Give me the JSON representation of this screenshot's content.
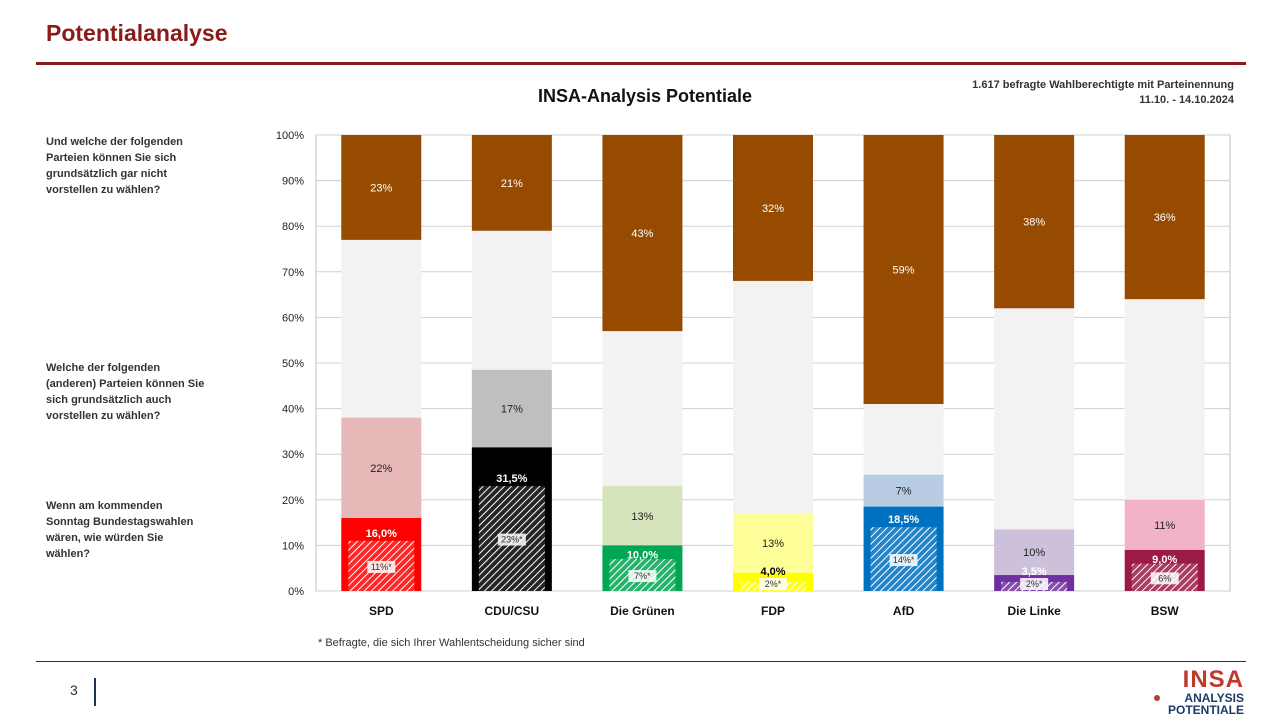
{
  "page": {
    "title": "Potentialanalyse",
    "meta_line1": "1.617 befragte Wahlberechtigte mit Parteinennung",
    "meta_line2": "11.10. - 14.10.2024",
    "questions": [
      "Und welche der folgenden Parteien können Sie sich grundsätzlich gar nicht vorstellen zu wählen?",
      "Welche der folgenden (anderen) Parteien können Sie sich grundsätzlich auch vorstellen zu wählen?",
      "Wenn am kommenden Sonntag Bundestagswahlen wären, wie würden Sie wählen?"
    ],
    "footnote": "* Befragte, die sich Ihrer Wahlentscheidung sicher sind",
    "page_number": "3",
    "logo_main": "INSA",
    "logo_sub1": "ANALYSIS",
    "logo_sub2": "POTENTIALE"
  },
  "chart_data": {
    "type": "bar",
    "stacked": true,
    "title": "INSA-Analysis Potentiale",
    "ylim": [
      0,
      100
    ],
    "yticks": [
      "0%",
      "10%",
      "20%",
      "30%",
      "40%",
      "50%",
      "60%",
      "70%",
      "80%",
      "90%",
      "100%"
    ],
    "grid": true,
    "categories": [
      "SPD",
      "CDU/CSU",
      "Die Grünen",
      "FDP",
      "AfD",
      "Die Linke",
      "BSW"
    ],
    "vote": [
      16.0,
      31.5,
      10.0,
      4.0,
      18.5,
      3.5,
      9.0
    ],
    "vote_labels": [
      "16,0%",
      "31,5%",
      "10,0%",
      "4,0%",
      "18,5%",
      "3,5%",
      "9,0%"
    ],
    "certain": [
      11,
      23,
      7,
      2,
      14,
      2,
      6
    ],
    "certain_labels": [
      "11%*",
      "23%*",
      "7%*",
      "2%*",
      "14%*",
      "2%*",
      "6%"
    ],
    "potential": [
      22,
      17,
      13,
      13,
      7,
      10,
      11
    ],
    "potential_labels": [
      "22%",
      "17%",
      "13%",
      "13%",
      "7%",
      "10%",
      "11%"
    ],
    "rejection": [
      23,
      21,
      43,
      32,
      59,
      38,
      36
    ],
    "rejection_labels": [
      "23%",
      "21%",
      "43%",
      "32%",
      "59%",
      "38%",
      "36%"
    ],
    "colors": {
      "vote": [
        "#ff0000",
        "#000000",
        "#00a651",
        "#ffff00",
        "#0070c0",
        "#7030a0",
        "#9b1b45"
      ],
      "potential": [
        "#e6b8b8",
        "#bfbfbf",
        "#d6e4bc",
        "#ffff99",
        "#b8cce4",
        "#ccc0da",
        "#f2b3c6"
      ],
      "rejection": "#964b00",
      "remainder": "#f2f2f2",
      "vote_label_text": [
        "#ffffff",
        "#ffffff",
        "#ffffff",
        "#000000",
        "#ffffff",
        "#ffffff",
        "#ffffff"
      ]
    }
  }
}
